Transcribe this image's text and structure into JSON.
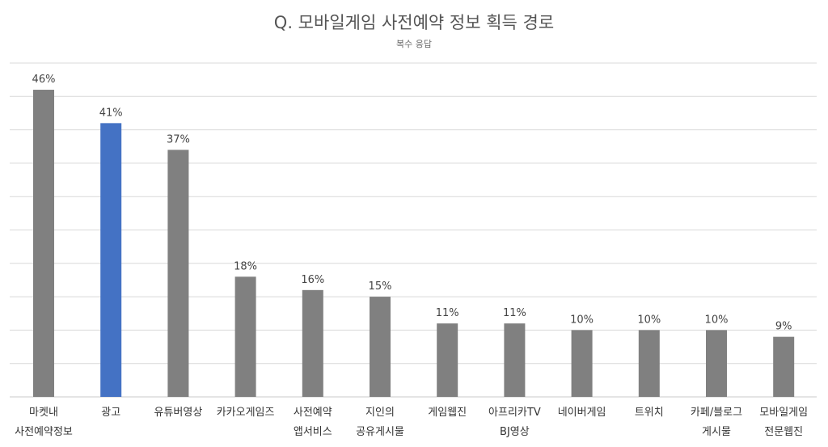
{
  "chart_data": {
    "type": "bar",
    "title": "Q. 모바일게임 사전예약 정보 획득 경로",
    "subtitle": "복수 응답",
    "categories": [
      [
        "마켓내",
        "사전예약정보"
      ],
      [
        "광고"
      ],
      [
        "유튜버영상"
      ],
      [
        "카카오게임즈"
      ],
      [
        "사전예약",
        "앱서비스"
      ],
      [
        "지인의",
        "공유게시물"
      ],
      [
        "게임웹진"
      ],
      [
        "아프리카TV",
        "BJ영상"
      ],
      [
        "네이버게임"
      ],
      [
        "트위치"
      ],
      [
        "카페/블로그",
        "게시물"
      ],
      [
        "모바일게임",
        "전문웹진"
      ]
    ],
    "values": [
      46,
      41,
      37,
      18,
      16,
      15,
      11,
      11,
      10,
      10,
      10,
      9
    ],
    "value_labels": [
      "46%",
      "41%",
      "37%",
      "18%",
      "16%",
      "15%",
      "11%",
      "11%",
      "10%",
      "10%",
      "10%",
      "9%"
    ],
    "highlight_index": 1,
    "ylim": [
      0,
      50
    ],
    "grid": true,
    "colors": {
      "default": "#808080",
      "highlight": "#4472C4"
    }
  }
}
